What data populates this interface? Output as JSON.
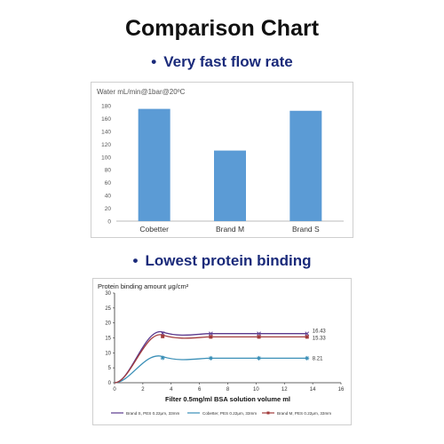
{
  "page": {
    "title": "Comparison Chart",
    "section1": "Very fast flow rate",
    "section2": "Lowest protein binding",
    "bullet": "•"
  },
  "chart_data": [
    {
      "type": "bar",
      "ylabel": "Water  mL/min@1bar@20ºC",
      "categories": [
        "Cobetter",
        "Brand M",
        "Brand S"
      ],
      "values": [
        175,
        110,
        172
      ],
      "ylim": [
        0,
        180
      ],
      "yticks": [
        0,
        20,
        40,
        60,
        80,
        100,
        120,
        140,
        160,
        180
      ],
      "bar_color": "#5b9bd5",
      "grid": false
    },
    {
      "type": "line",
      "ylabel": "Protein binding amount μg/cm²",
      "xlabel": "Filter 0.5mg/ml BSA solution volume ml",
      "xlim": [
        0,
        16
      ],
      "ylim": [
        0,
        30
      ],
      "xticks": [
        0,
        2,
        4,
        6,
        8,
        10,
        12,
        14,
        16
      ],
      "yticks": [
        0,
        5,
        10,
        15,
        20,
        25,
        30
      ],
      "grid": false,
      "series": [
        {
          "name": "Brand S, PES 0.22μm, 33mm",
          "color": "#5b3a8e",
          "marker": "x",
          "x": [
            0,
            3.4,
            6.8,
            10.2,
            13.6
          ],
          "y": [
            0,
            16.5,
            16.43,
            16.43,
            16.43
          ],
          "end_label": "16.43"
        },
        {
          "name": "Cobetter, PES 0.22μm, 33mm",
          "color": "#3a8fb7",
          "marker": "star",
          "x": [
            0,
            3.4,
            6.8,
            10.2,
            13.6
          ],
          "y": [
            0,
            8.3,
            8.21,
            8.21,
            8.21
          ],
          "end_label": "8.21"
        },
        {
          "name": "Brand M, PES 0.22μm, 33mm",
          "color": "#a23b3b",
          "marker": "square",
          "x": [
            0,
            3.4,
            6.8,
            10.2,
            13.6
          ],
          "y": [
            0,
            15.5,
            15.33,
            15.33,
            15.33
          ],
          "end_label": "15.33"
        }
      ]
    }
  ]
}
